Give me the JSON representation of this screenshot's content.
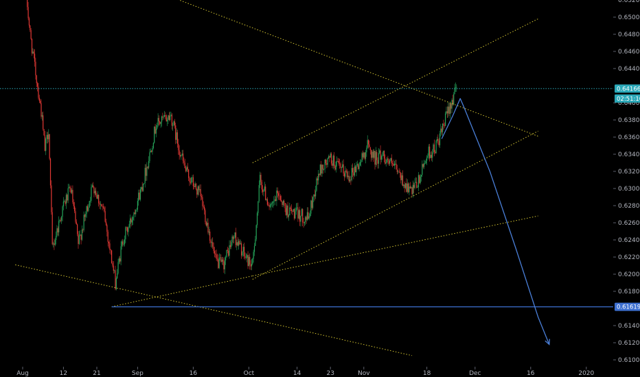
{
  "chart_data": {
    "type": "candlestick",
    "background": "#000000",
    "colors": {
      "up": "#26a65b",
      "down": "#e53935",
      "axis_text": "#b2b5be",
      "trendline": "#d4c531",
      "current_price_line": "#2aa8b8",
      "support_line": "#3d6fd0",
      "projection": "#4a7fd8"
    },
    "y_axis": {
      "position": "right",
      "range": [
        0.6095,
        0.6525
      ],
      "ticks": [
        "0.65000",
        "0.64800",
        "0.64600",
        "0.64400",
        "0.64000",
        "0.63800",
        "0.63600",
        "0.63400",
        "0.63200",
        "0.63000",
        "0.62800",
        "0.62600",
        "0.62400",
        "0.62200",
        "0.62000",
        "0.61800",
        "0.61400",
        "0.61200",
        "0.61000"
      ]
    },
    "x_axis": {
      "labels": [
        "Aug",
        "12",
        "21",
        "Sep",
        "16",
        "Oct",
        "14",
        "23",
        "Nov",
        "18",
        "Dec",
        "16",
        "2020"
      ]
    },
    "price_badges": [
      {
        "name": "current-price",
        "value": "0.64166",
        "price": 0.64166,
        "color": "#2aa8b8"
      },
      {
        "name": "countdown",
        "value": "02:51:10",
        "price": 0.6405,
        "color": "#2aa8b8"
      },
      {
        "name": "support-price",
        "value": "0.61619",
        "price": 0.61619,
        "color": "#3d6fd0"
      }
    ],
    "horizontal_lines": [
      {
        "name": "current-price-line",
        "price": 0.64166,
        "style": "dotted",
        "color": "#2aa8b8"
      },
      {
        "name": "support-line",
        "price": 0.61619,
        "style": "solid",
        "color": "#3d6fd0"
      }
    ],
    "path_anchors": [
      [
        "Aug 2",
        0.6525
      ],
      [
        "Aug 3",
        0.648
      ],
      [
        "Aug 6",
        0.639
      ],
      [
        "Aug 7",
        0.6345
      ],
      [
        "Aug 8",
        0.637
      ],
      [
        "Aug 9",
        0.623
      ],
      [
        "Aug 12",
        0.628
      ],
      [
        "Aug 14",
        0.63
      ],
      [
        "Aug 16",
        0.6235
      ],
      [
        "Aug 20",
        0.6305
      ],
      [
        "Aug 23",
        0.627
      ],
      [
        "Aug 26",
        0.619
      ],
      [
        "Aug 28",
        0.624
      ],
      [
        "Aug 30",
        0.626
      ],
      [
        "Sep 2",
        0.63
      ],
      [
        "Sep 4",
        0.6335
      ],
      [
        "Sep 6",
        0.6375
      ],
      [
        "Sep 10",
        0.6385
      ],
      [
        "Sep 12",
        0.635
      ],
      [
        "Sep 14",
        0.632
      ],
      [
        "Sep 16",
        0.6305
      ],
      [
        "Sep 18",
        0.629
      ],
      [
        "Sep 20",
        0.6255
      ],
      [
        "Sep 22",
        0.6215
      ],
      [
        "Sep 24",
        0.621
      ],
      [
        "Sep 27",
        0.6245
      ],
      [
        "Sep 30",
        0.622
      ],
      [
        "Oct 2",
        0.621
      ],
      [
        "Oct 4",
        0.631
      ],
      [
        "Oct 7",
        0.6275
      ],
      [
        "Oct 9",
        0.6295
      ],
      [
        "Oct 11",
        0.6275
      ],
      [
        "Oct 14",
        0.627
      ],
      [
        "Oct 17",
        0.6265
      ],
      [
        "Oct 20",
        0.632
      ],
      [
        "Oct 23",
        0.6335
      ],
      [
        "Oct 25",
        0.6325
      ],
      [
        "Oct 28",
        0.6315
      ],
      [
        "Oct 31",
        0.633
      ],
      [
        "Nov 2",
        0.635
      ],
      [
        "Nov 4",
        0.6335
      ],
      [
        "Nov 6",
        0.634
      ],
      [
        "Nov 8",
        0.633
      ],
      [
        "Nov 10",
        0.632
      ],
      [
        "Nov 12",
        0.6305
      ],
      [
        "Nov 14",
        0.6295
      ],
      [
        "Nov 16",
        0.631
      ],
      [
        "Nov 18",
        0.634
      ],
      [
        "Nov 20",
        0.6345
      ],
      [
        "Nov 22",
        0.6365
      ],
      [
        "Nov 24",
        0.6395
      ],
      [
        "Nov 26",
        0.6416
      ]
    ],
    "trendlines": [
      {
        "name": "falling-resistance",
        "from": [
          "Aug 31",
          0.654
        ],
        "to": [
          "Dec 18",
          0.6361
        ],
        "color": "#d4c531"
      },
      {
        "name": "falling-support",
        "from": [
          "Jul 30",
          0.6211
        ],
        "to": [
          "Nov 14",
          0.6105
        ],
        "color": "#d4c531"
      },
      {
        "name": "rising-channel-top",
        "from": [
          "Oct 2",
          0.633
        ],
        "to": [
          "Dec 18",
          0.6498
        ],
        "color": "#d4c531"
      },
      {
        "name": "rising-channel-bottom",
        "from": [
          "Oct 2",
          0.6194
        ],
        "to": [
          "Dec 18",
          0.6367
        ],
        "color": "#d4c531"
      },
      {
        "name": "rising-support-sep",
        "from": [
          "Aug 25",
          0.6162
        ],
        "to": [
          "Oct 2",
          0.6198
        ],
        "color": "#d4c531"
      },
      {
        "name": "rising-support-oct",
        "from": [
          "Oct 2",
          0.6198
        ],
        "to": [
          "Dec 18",
          0.6268
        ],
        "color": "#d4c531"
      }
    ],
    "projection": {
      "points": [
        [
          "Nov 22",
          0.6358
        ],
        [
          "Nov 25",
          0.6385
        ],
        [
          "Nov 27",
          0.6405
        ],
        [
          "Nov 28",
          0.6395
        ],
        [
          "Dec 5",
          0.632
        ],
        [
          "Dec 12",
          0.623
        ],
        [
          "Dec 18",
          0.615
        ],
        [
          "Dec 21",
          0.6118
        ]
      ],
      "arrow": true
    },
    "grid": false
  }
}
